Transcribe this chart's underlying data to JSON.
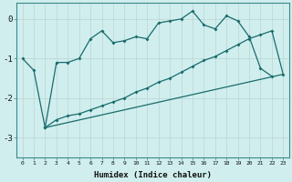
{
  "xlabel": "Humidex (Indice chaleur)",
  "bg_color": "#d0eeee",
  "grid_color": "#c0d8d8",
  "line_color": "#1a6b6b",
  "xlim": [
    -0.5,
    23.5
  ],
  "ylim": [
    -3.5,
    0.4
  ],
  "yticks": [
    0,
    -1,
    -2,
    -3
  ],
  "xtick_labels": [
    "0",
    "1",
    "2",
    "3",
    "4",
    "5",
    "6",
    "7",
    "8",
    "9",
    "10",
    "11",
    "12",
    "13",
    "14",
    "15",
    "16",
    "17",
    "18",
    "19",
    "20",
    "21",
    "22",
    "23"
  ],
  "line1_x": [
    0,
    1,
    2,
    3,
    4,
    5,
    6,
    7,
    8,
    9,
    10,
    11,
    12,
    13,
    14,
    15,
    16,
    17,
    18,
    19,
    20,
    21,
    22
  ],
  "line1_y": [
    -1.0,
    -1.3,
    -2.75,
    -1.1,
    -1.1,
    -1.0,
    -0.5,
    -0.3,
    -0.6,
    -0.55,
    -0.45,
    -0.5,
    -0.1,
    -0.05,
    0.0,
    0.2,
    -0.15,
    -0.25,
    0.08,
    -0.05,
    -0.45,
    -1.25,
    -1.45
  ],
  "line2_x": [
    2,
    3,
    4,
    5,
    6,
    7,
    8,
    9,
    10,
    11,
    12,
    13,
    14,
    15,
    16,
    17,
    18,
    19,
    20,
    21,
    22,
    23
  ],
  "line2_y": [
    -2.75,
    -2.55,
    -2.45,
    -2.4,
    -2.3,
    -2.2,
    -2.1,
    -2.0,
    -1.85,
    -1.75,
    -1.6,
    -1.5,
    -1.35,
    -1.2,
    -1.05,
    -0.95,
    -0.8,
    -0.65,
    -0.5,
    -0.4,
    -0.3,
    -1.4
  ],
  "line3_x": [
    2,
    23
  ],
  "line3_y": [
    -2.75,
    -1.4
  ]
}
